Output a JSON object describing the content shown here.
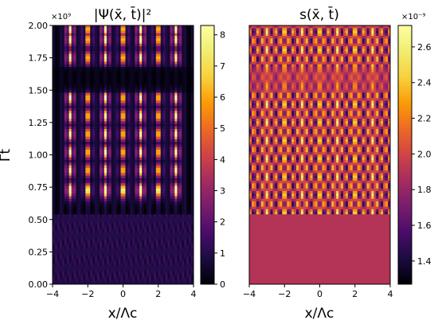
{
  "chart_data": [
    {
      "type": "heatmap",
      "title": "|Ψ(x̄, t̄)|²",
      "xlabel": "x/Λc",
      "ylabel": "Γt",
      "x_ticks": [
        "−4",
        "−2",
        "0",
        "2",
        "4"
      ],
      "y_ticks": [
        "0.00",
        "0.25",
        "0.50",
        "0.75",
        "1.00",
        "1.25",
        "1.50",
        "1.75",
        "2.00"
      ],
      "y_multiplier": "×10⁹",
      "xlim": [
        -4,
        4
      ],
      "ylim": [
        0,
        2000000000.0
      ],
      "colorbar": {
        "range": [
          0,
          8.3
        ],
        "ticks": [
          "0",
          "1",
          "2",
          "3",
          "4",
          "5",
          "6",
          "7",
          "8"
        ],
        "colormap": "inferno"
      },
      "features": {
        "bright_rows_t_e9": [
          0.73,
          0.88,
          1.02,
          1.16,
          1.3,
          1.44,
          1.75,
          1.89,
          1.97
        ],
        "bright_columns_x": [
          -3,
          -2,
          -1,
          0,
          1,
          2,
          3
        ],
        "weak_region_max_t_e9": 0.55
      }
    },
    {
      "type": "heatmap",
      "title": "s(x̄, t̄)",
      "xlabel": "x/Λc",
      "x_ticks": [
        "−4",
        "−2",
        "0",
        "2",
        "4"
      ],
      "xlim": [
        -4,
        4
      ],
      "ylim": [
        0,
        2000000000.0
      ],
      "colorbar": {
        "range": [
          1.27e-09,
          2.72e-09
        ],
        "ticks": [
          "1.4",
          "1.6",
          "1.8",
          "2.0",
          "2.2",
          "2.4",
          "2.6"
        ],
        "multiplier": "×10⁻⁹",
        "colormap": "inferno"
      },
      "features": {
        "uniform_value": 1.9e-09,
        "pattern_onset_t_e9": 0.55
      }
    }
  ]
}
